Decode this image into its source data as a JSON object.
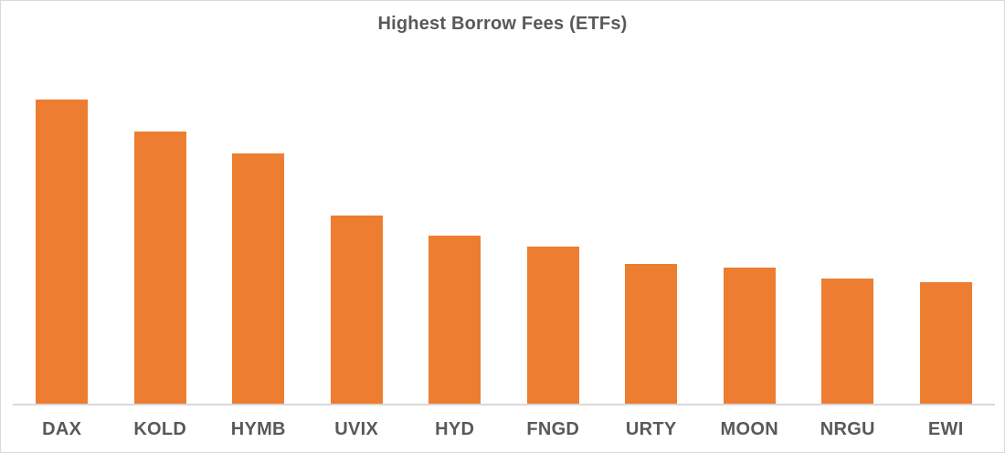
{
  "chart_data": {
    "type": "bar",
    "title": "Highest Borrow Fees (ETFs)",
    "categories": [
      "DAX",
      "KOLD",
      "HYMB",
      "UVIX",
      "HYD",
      "FNGD",
      "URTY",
      "MOON",
      "NRGU",
      "EWI"
    ],
    "values": [
      100,
      89.5,
      82.3,
      62.0,
      55.4,
      51.8,
      46.1,
      44.9,
      41.3,
      40.1
    ],
    "values_note": "y-axis is unlabeled in source chart; values are relative bar heights normalized to DAX = 100",
    "xlabel": "",
    "ylabel": "",
    "ylim": [
      0,
      114
    ],
    "grid": false,
    "legend": false,
    "bar_color": "#ED7D31",
    "axis_line_color": "#D9D9D9",
    "text_color": "#595959",
    "background_color": "#FFFFFF"
  }
}
